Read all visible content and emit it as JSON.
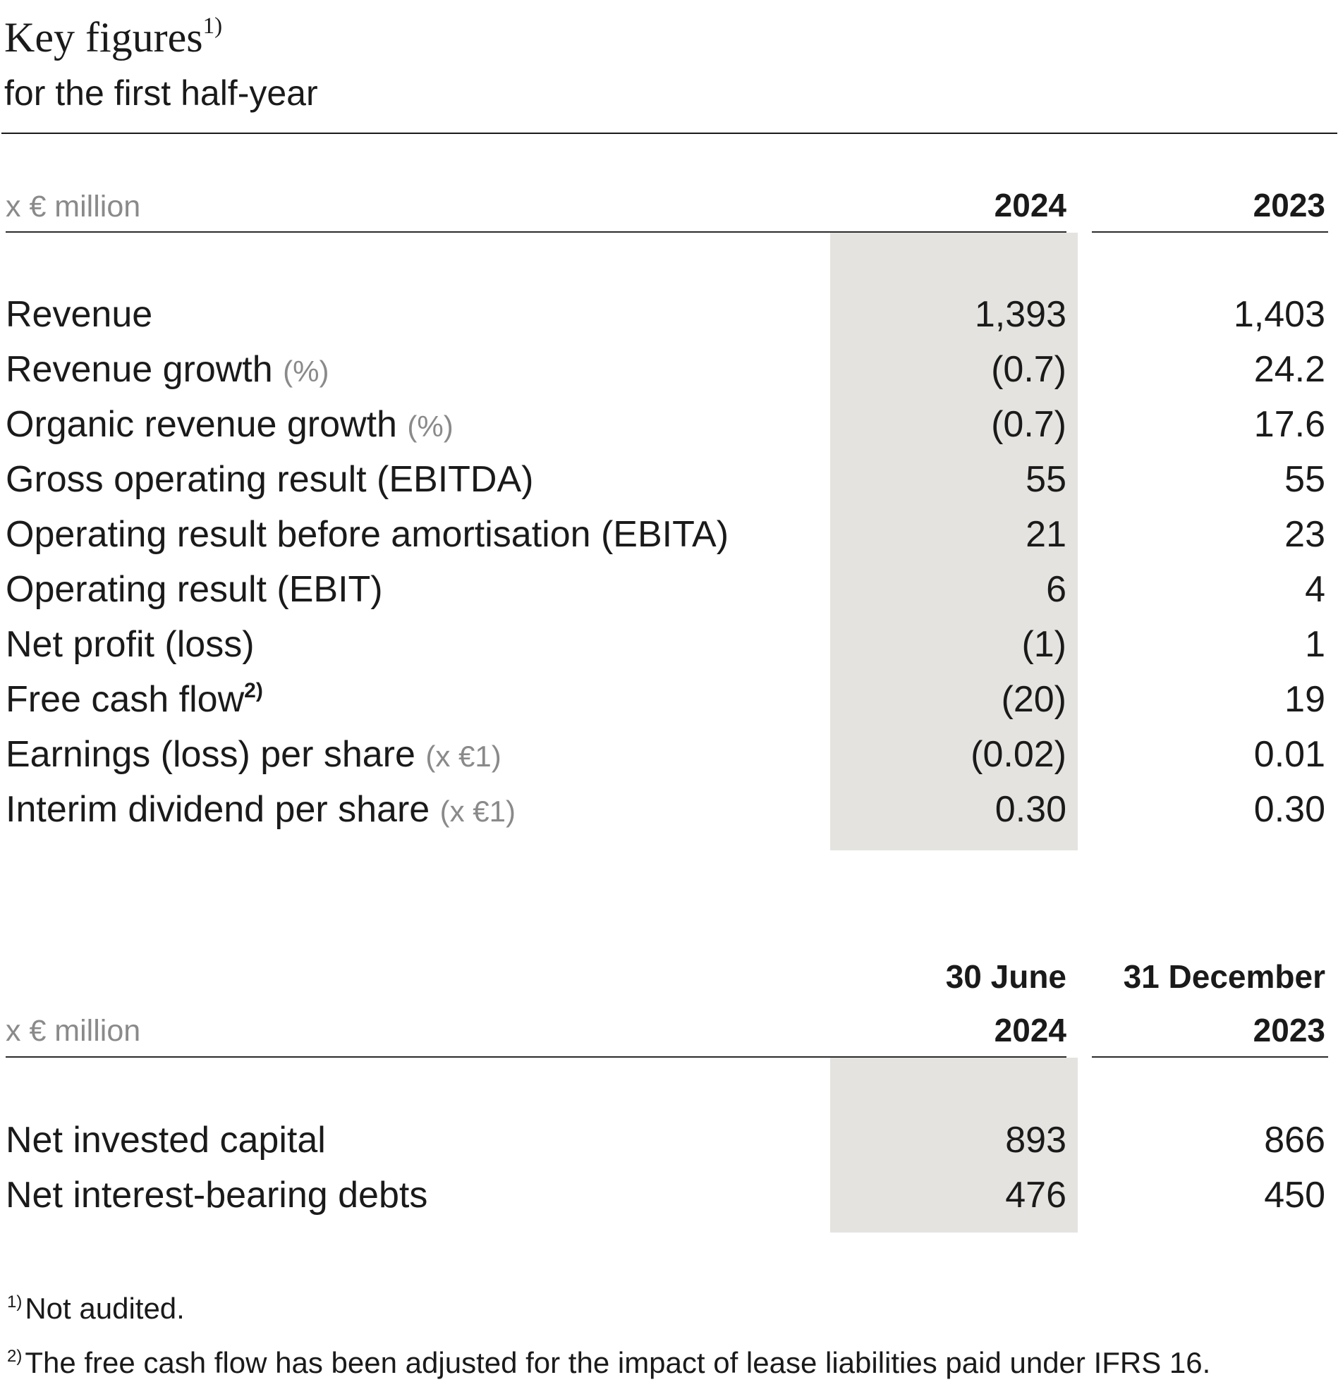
{
  "header": {
    "title": "Key figures",
    "title_footnote_mark": "1)",
    "subtitle": "for the first half-year"
  },
  "table1": {
    "unit_label": "x € million",
    "col1_header": "2024",
    "col2_header": "2023",
    "rows": [
      {
        "label": "Revenue",
        "note": "",
        "mark": "",
        "v2024": "1,393",
        "v2023": "1,403"
      },
      {
        "label": "Revenue growth",
        "note": "(%)",
        "mark": "",
        "v2024": "(0.7)",
        "v2023": "24.2"
      },
      {
        "label": "Organic revenue growth",
        "note": "(%)",
        "mark": "",
        "v2024": "(0.7)",
        "v2023": "17.6"
      },
      {
        "label": "Gross operating result (EBITDA)",
        "note": "",
        "mark": "",
        "v2024": "55",
        "v2023": "55"
      },
      {
        "label": "Operating result before amortisation (EBITA)",
        "note": "",
        "mark": "",
        "v2024": "21",
        "v2023": "23"
      },
      {
        "label": "Operating result (EBIT)",
        "note": "",
        "mark": "",
        "v2024": "6",
        "v2023": "4"
      },
      {
        "label": "Net profit (loss)",
        "note": "",
        "mark": "",
        "v2024": "(1)",
        "v2023": "1"
      },
      {
        "label": "Free cash flow",
        "note": "",
        "mark": "2)",
        "v2024": "(20)",
        "v2023": "19"
      },
      {
        "label": "Earnings (loss) per share",
        "note": "(x €1)",
        "mark": "",
        "v2024": "(0.02)",
        "v2023": "0.01"
      },
      {
        "label": "Interim dividend per share",
        "note": "(x €1)",
        "mark": "",
        "v2024": "0.30",
        "v2023": "0.30"
      }
    ]
  },
  "table2": {
    "unit_label": "x € million",
    "col1_header_line1": "30 June",
    "col1_header_line2": "2024",
    "col2_header_line1": "31 December",
    "col2_header_line2": "2023",
    "rows": [
      {
        "label": "Net invested capital",
        "v1": "893",
        "v2": "866"
      },
      {
        "label": "Net interest-bearing debts",
        "v1": "476",
        "v2": "450"
      }
    ]
  },
  "footnotes": [
    {
      "mark": "1)",
      "text": "Not audited."
    },
    {
      "mark": "2)",
      "text": "The free cash flow has been adjusted for the impact of lease liabilities paid under IFRS 16."
    }
  ],
  "colors": {
    "shade": "#e4e3df",
    "text": "#1a1a1a",
    "muted": "#8a8a8a"
  }
}
